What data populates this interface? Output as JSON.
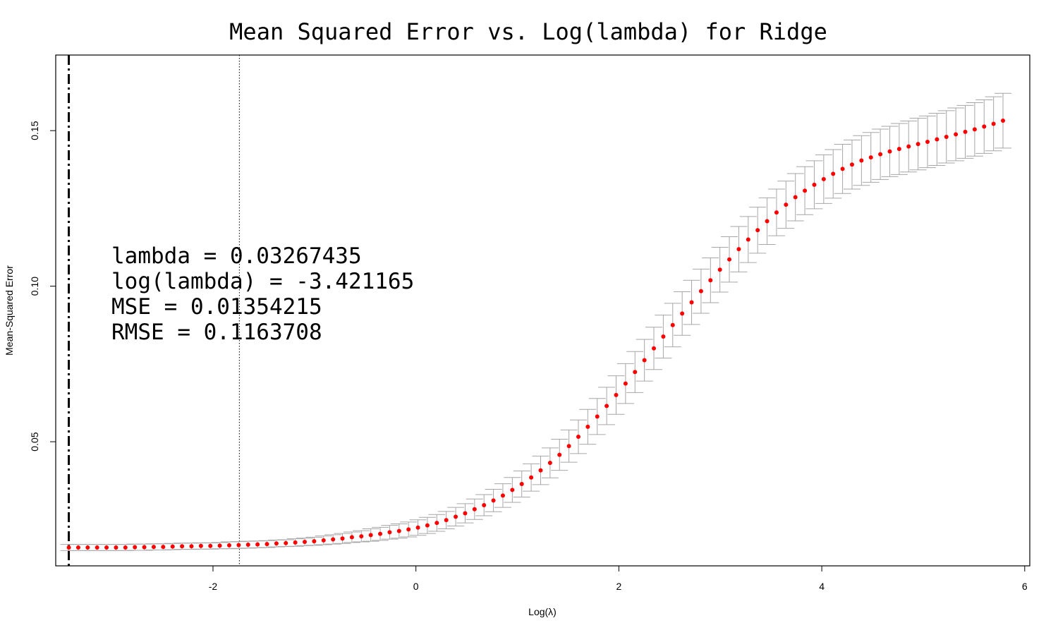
{
  "chart_data": {
    "type": "scatter",
    "title": "Mean Squared Error vs. Log(lambda) for Ridge",
    "xlabel": "Log(λ)",
    "ylabel": "Mean-Squared Error",
    "xlim": [
      -3.55,
      6.05
    ],
    "ylim": [
      0.0101,
      0.1743
    ],
    "x_ticks": [
      -2,
      0,
      2,
      4,
      6
    ],
    "x_tick_labels": [
      "-2",
      "0",
      "2",
      "4",
      "6"
    ],
    "y_ticks": [
      0.05,
      0.1,
      0.15
    ],
    "y_tick_labels": [
      "0.05",
      "0.10",
      "0.15"
    ],
    "grid": false,
    "legend": "none",
    "series": [
      {
        "x": [
          -3.421,
          -3.328,
          -3.235,
          -3.142,
          -3.049,
          -2.956,
          -2.863,
          -2.77,
          -2.677,
          -2.584,
          -2.491,
          -2.398,
          -2.305,
          -2.212,
          -2.119,
          -2.026,
          -1.933,
          -1.84,
          -1.747,
          -1.654,
          -1.561,
          -1.468,
          -1.375,
          -1.282,
          -1.189,
          -1.096,
          -1.003,
          -0.91,
          -0.817,
          -0.724,
          -0.631,
          -0.538,
          -0.445,
          -0.352,
          -0.259,
          -0.166,
          -0.073,
          0.02,
          0.113,
          0.206,
          0.299,
          0.392,
          0.485,
          0.578,
          0.671,
          0.764,
          0.857,
          0.95,
          1.043,
          1.136,
          1.229,
          1.322,
          1.415,
          1.508,
          1.601,
          1.694,
          1.787,
          1.88,
          1.973,
          2.066,
          2.159,
          2.252,
          2.345,
          2.438,
          2.531,
          2.624,
          2.717,
          2.81,
          2.903,
          2.996,
          3.089,
          3.182,
          3.275,
          3.368,
          3.461,
          3.554,
          3.647,
          3.74,
          3.833,
          3.926,
          4.019,
          4.112,
          4.205,
          4.298,
          4.391,
          4.484,
          4.577,
          4.67,
          4.763,
          4.856,
          4.949,
          5.042,
          5.135,
          5.228,
          5.321,
          5.414,
          5.507,
          5.6,
          5.693,
          5.786
        ],
        "y": [
          0.016,
          0.016,
          0.016,
          0.016,
          0.016,
          0.016,
          0.016,
          0.0161,
          0.0161,
          0.0162,
          0.0162,
          0.0163,
          0.0164,
          0.0164,
          0.0165,
          0.0165,
          0.0166,
          0.0167,
          0.0168,
          0.0169,
          0.017,
          0.0171,
          0.0173,
          0.0174,
          0.0176,
          0.0178,
          0.018,
          0.0183,
          0.0186,
          0.0189,
          0.0193,
          0.0196,
          0.02,
          0.0204,
          0.0209,
          0.0213,
          0.0218,
          0.0224,
          0.0231,
          0.0239,
          0.0248,
          0.0259,
          0.027,
          0.0283,
          0.0296,
          0.0311,
          0.0327,
          0.0345,
          0.0364,
          0.0385,
          0.0408,
          0.0432,
          0.0458,
          0.0486,
          0.0516,
          0.0548,
          0.0581,
          0.0615,
          0.065,
          0.0687,
          0.0724,
          0.0762,
          0.08,
          0.0838,
          0.0875,
          0.0912,
          0.0948,
          0.0984,
          0.1019,
          0.1053,
          0.1086,
          0.1119,
          0.115,
          0.118,
          0.1209,
          0.1237,
          0.1262,
          0.1286,
          0.1307,
          0.1326,
          0.1344,
          0.1361,
          0.1377,
          0.1391,
          0.1404,
          0.1414,
          0.1424,
          0.1433,
          0.1441,
          0.1449,
          0.1457,
          0.1464,
          0.1472,
          0.148,
          0.1488,
          0.1496,
          0.1504,
          0.1513,
          0.1522,
          0.1532
        ],
        "err": [
          0.001,
          0.001,
          0.001,
          0.001,
          0.001,
          0.001,
          0.001,
          0.001,
          0.001,
          0.001,
          0.001,
          0.001,
          0.001,
          0.001,
          0.001,
          0.001,
          0.001,
          0.0011,
          0.0011,
          0.0011,
          0.0011,
          0.0011,
          0.0011,
          0.0011,
          0.0012,
          0.0012,
          0.0013,
          0.0014,
          0.0015,
          0.0016,
          0.0017,
          0.0018,
          0.002,
          0.0021,
          0.0022,
          0.0023,
          0.0024,
          0.0025,
          0.0026,
          0.0027,
          0.0028,
          0.003,
          0.0031,
          0.0033,
          0.0034,
          0.0036,
          0.0038,
          0.004,
          0.0042,
          0.0044,
          0.0046,
          0.0048,
          0.005,
          0.0052,
          0.0054,
          0.0056,
          0.0058,
          0.006,
          0.0062,
          0.0064,
          0.0066,
          0.0067,
          0.0068,
          0.0069,
          0.007,
          0.007,
          0.0071,
          0.0071,
          0.0072,
          0.0072,
          0.0073,
          0.0073,
          0.0074,
          0.0074,
          0.0075,
          0.0075,
          0.0076,
          0.0076,
          0.0077,
          0.0077,
          0.0078,
          0.0078,
          0.0079,
          0.0079,
          0.008,
          0.008,
          0.0081,
          0.0081,
          0.0082,
          0.0082,
          0.0083,
          0.0083,
          0.0084,
          0.0084,
          0.0085,
          0.0085,
          0.0086,
          0.0086,
          0.0087,
          0.0088
        ],
        "color": "#ff0000",
        "err_color": "#a6a6a6"
      }
    ],
    "vlines": [
      {
        "x": -3.421,
        "style": "dash-dot"
      },
      {
        "x": -1.74,
        "style": "dotted"
      }
    ],
    "annotations": [
      "lambda = 0.03267435",
      "log(lambda) = -3.421165",
      "MSE = 0.01354215",
      "RMSE = 0.1163708"
    ]
  }
}
